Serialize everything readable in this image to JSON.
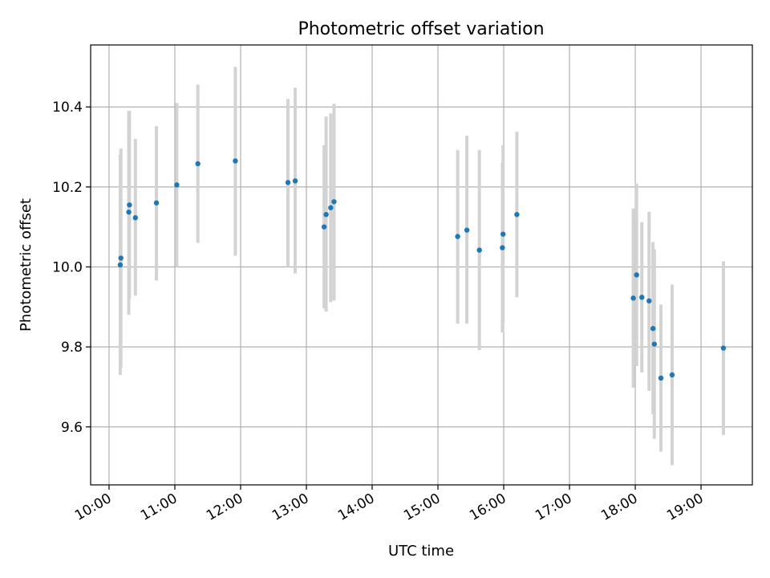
{
  "chart_data": {
    "type": "scatter",
    "title": "Photometric offset variation",
    "xlabel": "UTC time",
    "ylabel": "Photometric offset",
    "x_unit": "hours UTC",
    "xlim": [
      9.72,
      19.78
    ],
    "ylim": [
      9.455,
      10.555
    ],
    "grid": true,
    "x_ticks": [
      {
        "value": 10,
        "label": "10:00"
      },
      {
        "value": 11,
        "label": "11:00"
      },
      {
        "value": 12,
        "label": "12:00"
      },
      {
        "value": 13,
        "label": "13:00"
      },
      {
        "value": 14,
        "label": "14:00"
      },
      {
        "value": 15,
        "label": "15:00"
      },
      {
        "value": 16,
        "label": "16:00"
      },
      {
        "value": 17,
        "label": "17:00"
      },
      {
        "value": 18,
        "label": "18:00"
      },
      {
        "value": 19,
        "label": "19:00"
      }
    ],
    "y_ticks": [
      {
        "value": 9.6,
        "label": "9.6"
      },
      {
        "value": 9.8,
        "label": "9.8"
      },
      {
        "value": 10.0,
        "label": "10.0"
      },
      {
        "value": 10.2,
        "label": "10.2"
      },
      {
        "value": 10.4,
        "label": "10.4"
      }
    ],
    "marker_color": "#1f77b4",
    "errorbar_color": "#d3d3d3",
    "points": [
      {
        "x": 10.17,
        "y": 10.005,
        "lo": 9.73,
        "hi": 10.28
      },
      {
        "x": 10.18,
        "y": 10.022,
        "lo": 9.748,
        "hi": 10.296
      },
      {
        "x": 10.3,
        "y": 10.137,
        "lo": 9.88,
        "hi": 10.39
      },
      {
        "x": 10.31,
        "y": 10.155,
        "lo": 9.92,
        "hi": 10.39
      },
      {
        "x": 10.4,
        "y": 10.123,
        "lo": 9.928,
        "hi": 10.32
      },
      {
        "x": 10.72,
        "y": 10.16,
        "lo": 9.966,
        "hi": 10.352
      },
      {
        "x": 11.03,
        "y": 10.205,
        "lo": 10.0,
        "hi": 10.41
      },
      {
        "x": 11.35,
        "y": 10.258,
        "lo": 10.06,
        "hi": 10.456
      },
      {
        "x": 11.92,
        "y": 10.265,
        "lo": 10.028,
        "hi": 10.5
      },
      {
        "x": 12.72,
        "y": 10.211,
        "lo": 10.0,
        "hi": 10.42
      },
      {
        "x": 12.83,
        "y": 10.215,
        "lo": 9.984,
        "hi": 10.448
      },
      {
        "x": 13.27,
        "y": 10.1,
        "lo": 9.896,
        "hi": 10.304
      },
      {
        "x": 13.3,
        "y": 10.131,
        "lo": 9.888,
        "hi": 10.376
      },
      {
        "x": 13.37,
        "y": 10.148,
        "lo": 9.912,
        "hi": 10.384
      },
      {
        "x": 13.42,
        "y": 10.163,
        "lo": 9.916,
        "hi": 10.408
      },
      {
        "x": 15.3,
        "y": 10.076,
        "lo": 9.858,
        "hi": 10.292
      },
      {
        "x": 15.44,
        "y": 10.092,
        "lo": 9.858,
        "hi": 10.328
      },
      {
        "x": 15.63,
        "y": 10.042,
        "lo": 9.792,
        "hi": 10.292
      },
      {
        "x": 15.98,
        "y": 10.048,
        "lo": 9.836,
        "hi": 10.26
      },
      {
        "x": 15.99,
        "y": 10.082,
        "lo": 9.86,
        "hi": 10.304
      },
      {
        "x": 16.2,
        "y": 10.131,
        "lo": 9.924,
        "hi": 10.338
      },
      {
        "x": 17.97,
        "y": 9.922,
        "lo": 9.698,
        "hi": 10.146
      },
      {
        "x": 18.02,
        "y": 9.98,
        "lo": 9.752,
        "hi": 10.208
      },
      {
        "x": 18.1,
        "y": 9.924,
        "lo": 9.736,
        "hi": 10.112
      },
      {
        "x": 18.21,
        "y": 9.915,
        "lo": 9.69,
        "hi": 10.138
      },
      {
        "x": 18.27,
        "y": 9.846,
        "lo": 9.632,
        "hi": 10.062
      },
      {
        "x": 18.29,
        "y": 9.807,
        "lo": 9.57,
        "hi": 10.044
      },
      {
        "x": 18.39,
        "y": 9.722,
        "lo": 9.538,
        "hi": 9.906
      },
      {
        "x": 18.56,
        "y": 9.73,
        "lo": 9.504,
        "hi": 9.956
      },
      {
        "x": 19.34,
        "y": 9.797,
        "lo": 9.58,
        "hi": 10.014
      }
    ]
  }
}
